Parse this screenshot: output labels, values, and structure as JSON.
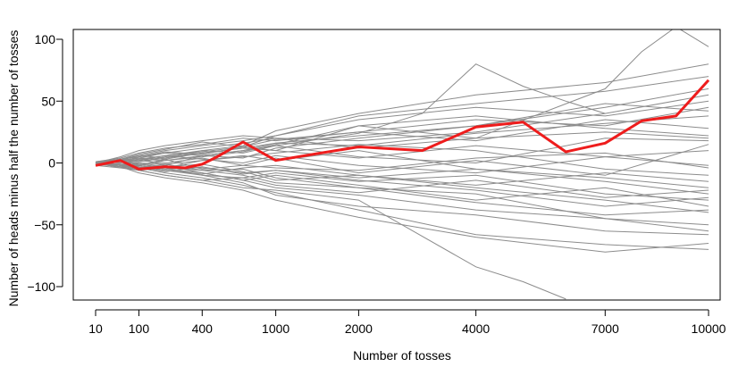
{
  "chart_data": {
    "type": "line",
    "xlabel": "Number of tosses",
    "ylabel": "Number of heads minus half the number of tosses",
    "x_scale": "sqrt",
    "xlim": [
      0,
      10000
    ],
    "ylim": [
      -110,
      110
    ],
    "x_ticks": [
      10,
      100,
      400,
      1000,
      2000,
      4000,
      7000,
      10000
    ],
    "x_tick_labels": [
      "10",
      "100",
      "400",
      "1000",
      "2000",
      "4000",
      "7000",
      "10000"
    ],
    "y_ticks": [
      -100,
      -50,
      0,
      50,
      100
    ],
    "y_tick_labels": [
      "−100",
      "−50",
      "0",
      "50",
      "100"
    ],
    "grid": false,
    "colors": {
      "highlight": "#ee1c1c",
      "background_series": "#8c8c8c",
      "axis": "#000000"
    },
    "highlight_series": {
      "x": [
        10,
        50,
        100,
        200,
        300,
        400,
        500,
        700,
        1000,
        1500,
        2000,
        3000,
        4000,
        5000,
        6000,
        7000,
        8000,
        9000,
        10000
      ],
      "values": [
        -2,
        2,
        -5,
        -3,
        -4,
        -1,
        5,
        17,
        2,
        8,
        13,
        10,
        29,
        33,
        9,
        16,
        34,
        38,
        67
      ]
    },
    "series": [
      {
        "x": [
          10,
          50,
          100,
          200,
          400,
          700,
          1000,
          2000,
          4000,
          7000,
          10000
        ],
        "values": [
          0,
          3,
          6,
          10,
          14,
          18,
          22,
          38,
          48,
          58,
          70
        ]
      },
      {
        "x": [
          10,
          50,
          100,
          200,
          400,
          700,
          1000,
          2000,
          4000,
          7000,
          10000
        ],
        "values": [
          1,
          -2,
          -4,
          -8,
          -12,
          -18,
          -24,
          -38,
          -58,
          -66,
          -70
        ]
      },
      {
        "x": [
          10,
          50,
          100,
          200,
          400,
          700,
          1000,
          2000,
          4000,
          5000,
          6000
        ],
        "values": [
          -2,
          -4,
          -6,
          -10,
          -14,
          -20,
          -22,
          -30,
          -84,
          -96,
          -110
        ]
      },
      {
        "x": [
          10,
          50,
          100,
          200,
          400,
          700,
          1000,
          2000,
          3000,
          4000,
          5000,
          6000,
          7000
        ],
        "values": [
          0,
          2,
          4,
          -2,
          6,
          10,
          14,
          24,
          40,
          80,
          62,
          50,
          40
        ]
      },
      {
        "x": [
          10,
          50,
          100,
          200,
          400,
          700,
          1000,
          2000,
          4000,
          7000,
          8000,
          9000,
          10000
        ],
        "values": [
          0,
          2,
          1,
          4,
          8,
          12,
          10,
          30,
          20,
          60,
          90,
          110,
          94
        ]
      },
      {
        "x": [
          10,
          50,
          100,
          200,
          400,
          700,
          1000,
          2000,
          4000,
          7000,
          10000
        ],
        "values": [
          0,
          1,
          3,
          6,
          10,
          14,
          26,
          40,
          55,
          65,
          80
        ]
      },
      {
        "x": [
          10,
          50,
          100,
          200,
          400,
          700,
          1000,
          2000,
          4000,
          7000,
          10000
        ],
        "values": [
          0,
          -1,
          -2,
          -5,
          -8,
          -14,
          -20,
          -26,
          -38,
          -45,
          -55
        ]
      },
      {
        "x": [
          10,
          50,
          100,
          200,
          400,
          700,
          1000,
          2000,
          4000,
          7000,
          10000
        ],
        "values": [
          1,
          4,
          8,
          12,
          15,
          20,
          18,
          25,
          35,
          30,
          45
        ]
      },
      {
        "x": [
          10,
          50,
          100,
          200,
          400,
          700,
          1000,
          2000,
          4000,
          7000,
          10000
        ],
        "values": [
          0,
          -3,
          -6,
          -4,
          -10,
          -12,
          -8,
          -15,
          -10,
          -25,
          -30
        ]
      },
      {
        "x": [
          10,
          50,
          100,
          200,
          400,
          700,
          1000,
          2000,
          4000,
          7000,
          10000
        ],
        "values": [
          0,
          2,
          -2,
          3,
          -5,
          -2,
          4,
          -8,
          2,
          -10,
          15
        ]
      },
      {
        "x": [
          10,
          50,
          100,
          200,
          400,
          700,
          1000,
          2000,
          4000,
          7000,
          10000
        ],
        "values": [
          0,
          5,
          10,
          14,
          18,
          22,
          20,
          18,
          25,
          40,
          55
        ]
      },
      {
        "x": [
          10,
          50,
          100,
          200,
          400,
          700,
          1000,
          2000,
          4000,
          7000,
          10000
        ],
        "values": [
          -1,
          -3,
          -8,
          -12,
          -16,
          -22,
          -30,
          -44,
          -60,
          -72,
          -65
        ]
      },
      {
        "x": [
          10,
          50,
          100,
          200,
          400,
          700,
          1000,
          2000,
          4000,
          7000,
          10000
        ],
        "values": [
          0,
          1,
          0,
          -1,
          2,
          5,
          8,
          15,
          10,
          -5,
          -10
        ]
      },
      {
        "x": [
          10,
          50,
          100,
          200,
          400,
          700,
          1000,
          2000,
          4000,
          7000,
          10000
        ],
        "values": [
          0,
          -2,
          -1,
          -4,
          -6,
          -5,
          -12,
          -20,
          -25,
          -45,
          -50
        ]
      },
      {
        "x": [
          10,
          50,
          100,
          200,
          400,
          700,
          1000,
          2000,
          4000,
          7000,
          10000
        ],
        "values": [
          1,
          3,
          5,
          8,
          6,
          10,
          16,
          22,
          30,
          45,
          60
        ]
      },
      {
        "x": [
          10,
          50,
          100,
          200,
          400,
          700,
          1000,
          2000,
          4000,
          7000,
          10000
        ],
        "values": [
          0,
          -2,
          -4,
          -2,
          -8,
          -14,
          -10,
          -18,
          -30,
          -20,
          -35
        ]
      },
      {
        "x": [
          10,
          50,
          100,
          200,
          400,
          700,
          1000,
          2000,
          4000,
          7000,
          10000
        ],
        "values": [
          0,
          2,
          6,
          4,
          10,
          8,
          14,
          5,
          0,
          20,
          18
        ]
      },
      {
        "x": [
          10,
          50,
          100,
          200,
          400,
          700,
          1000,
          2000,
          4000,
          7000,
          10000
        ],
        "values": [
          0,
          -1,
          -3,
          -7,
          -3,
          -9,
          -6,
          -12,
          -5,
          -15,
          -25
        ]
      },
      {
        "x": [
          10,
          50,
          100,
          200,
          400,
          700,
          1000,
          2000,
          4000,
          7000,
          10000
        ],
        "values": [
          0,
          3,
          7,
          11,
          17,
          13,
          22,
          35,
          45,
          38,
          50
        ]
      },
      {
        "x": [
          10,
          50,
          100,
          200,
          400,
          700,
          1000,
          2000,
          4000,
          7000,
          10000
        ],
        "values": [
          0,
          -4,
          -2,
          -6,
          -10,
          -16,
          -26,
          -35,
          -42,
          -55,
          -58
        ]
      },
      {
        "x": [
          10,
          50,
          100,
          200,
          400,
          700,
          1000,
          2000,
          4000,
          7000,
          10000
        ],
        "values": [
          1,
          0,
          2,
          0,
          4,
          -2,
          -4,
          -6,
          4,
          8,
          -4
        ]
      },
      {
        "x": [
          10,
          50,
          100,
          200,
          400,
          700,
          1000,
          2000,
          4000,
          7000,
          10000
        ],
        "values": [
          0,
          2,
          4,
          8,
          12,
          16,
          20,
          12,
          20,
          25,
          20
        ]
      },
      {
        "x": [
          10,
          50,
          100,
          200,
          400,
          700,
          1000,
          2000,
          4000,
          7000,
          10000
        ],
        "values": [
          0,
          -2,
          -5,
          -3,
          -1,
          -7,
          -14,
          -10,
          -20,
          -30,
          -40
        ]
      },
      {
        "x": [
          10,
          50,
          100,
          200,
          400,
          700,
          1000,
          2000,
          4000,
          7000,
          10000
        ],
        "values": [
          0,
          1,
          3,
          2,
          6,
          4,
          12,
          20,
          30,
          48,
          42
        ]
      },
      {
        "x": [
          10,
          50,
          100,
          200,
          400,
          700,
          1000,
          2000,
          4000,
          7000,
          10000
        ],
        "values": [
          0,
          -1,
          0,
          -3,
          -4,
          -8,
          -6,
          -14,
          -22,
          -35,
          -28
        ]
      },
      {
        "x": [
          10,
          50,
          100,
          200,
          400,
          700,
          1000,
          2000,
          4000,
          7000,
          10000
        ],
        "values": [
          0,
          2,
          -1,
          -4,
          2,
          6,
          2,
          10,
          -5,
          -12,
          -20
        ]
      },
      {
        "x": [
          10,
          50,
          100,
          200,
          400,
          700,
          1000,
          2000,
          4000,
          7000,
          10000
        ],
        "values": [
          0,
          -3,
          -2,
          2,
          5,
          9,
          15,
          30,
          38,
          28,
          22
        ]
      },
      {
        "x": [
          10,
          50,
          100,
          200,
          400,
          700,
          1000,
          2000,
          4000,
          7000,
          10000
        ],
        "values": [
          1,
          3,
          1,
          5,
          9,
          13,
          10,
          4,
          14,
          5,
          -2
        ]
      },
      {
        "x": [
          10,
          50,
          100,
          200,
          400,
          700,
          1000,
          2000,
          4000,
          7000,
          10000
        ],
        "values": [
          0,
          -2,
          -6,
          -10,
          -14,
          -12,
          -18,
          -24,
          -14,
          -28,
          -22
        ]
      },
      {
        "x": [
          10,
          50,
          100,
          200,
          400,
          700,
          1000,
          2000,
          4000,
          7000,
          10000
        ],
        "values": [
          0,
          1,
          5,
          9,
          7,
          13,
          19,
          25,
          18,
          35,
          28
        ]
      },
      {
        "x": [
          10,
          50,
          100,
          200,
          400,
          700,
          1000,
          2000,
          4000,
          7000,
          10000
        ],
        "values": [
          0,
          -1,
          -4,
          -1,
          -6,
          -10,
          -16,
          -20,
          -32,
          -42,
          -38
        ]
      },
      {
        "x": [
          10,
          50,
          100,
          200,
          400,
          700,
          1000,
          2000,
          4000,
          7000,
          10000
        ],
        "values": [
          0,
          3,
          2,
          6,
          3,
          0,
          6,
          -2,
          -8,
          5,
          10
        ]
      },
      {
        "x": [
          10,
          50,
          100,
          200,
          400,
          700,
          1000,
          2000,
          4000,
          7000,
          10000
        ],
        "values": [
          0,
          -2,
          -3,
          -6,
          -9,
          -4,
          -2,
          -10,
          -18,
          -8,
          -15
        ]
      },
      {
        "x": [
          10,
          50,
          100,
          200,
          400,
          700,
          1000,
          2000,
          4000,
          7000,
          10000
        ],
        "values": [
          1,
          2,
          4,
          3,
          8,
          12,
          16,
          14,
          24,
          32,
          38
        ]
      }
    ]
  }
}
